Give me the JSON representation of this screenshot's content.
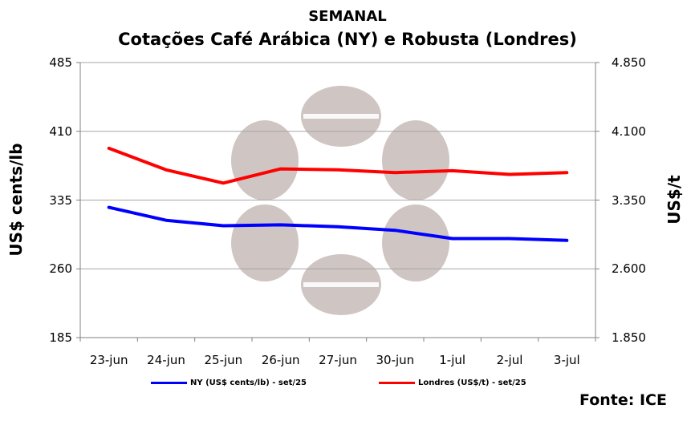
{
  "chart_data": {
    "type": "line",
    "title": "SEMANAL",
    "subtitle": "Cotações Café Arábica (NY) e Robusta (Londres)",
    "categories": [
      "23-jun",
      "24-jun",
      "25-jun",
      "26-jun",
      "27-jun",
      "30-jun",
      "1-jul",
      "2-jul",
      "3-jul"
    ],
    "ylabel_left": "US$ cents/lb",
    "ylabel_right": "US$/t",
    "yticks_left": [
      "485",
      "410",
      "335",
      "260",
      "185"
    ],
    "yticks_right": [
      "4.850",
      "4.100",
      "3.350",
      "2.600",
      "1.850"
    ],
    "ylim_left": [
      185,
      485
    ],
    "ylim_right": [
      1850,
      4850
    ],
    "grid": true,
    "legend_position": "bottom",
    "series": [
      {
        "name": "NY (US$ cents/lb) - set/25",
        "axis": "left",
        "color": "#0000ff",
        "values": [
          327,
          313,
          307,
          308,
          306,
          302,
          293,
          293,
          291
        ]
      },
      {
        "name": "Londres (US$/t) - set/25",
        "axis": "right",
        "color": "#ff0000",
        "values": [
          3915,
          3680,
          3535,
          3690,
          3680,
          3650,
          3670,
          3630,
          3650
        ]
      }
    ],
    "source": "Fonte: ICE"
  }
}
